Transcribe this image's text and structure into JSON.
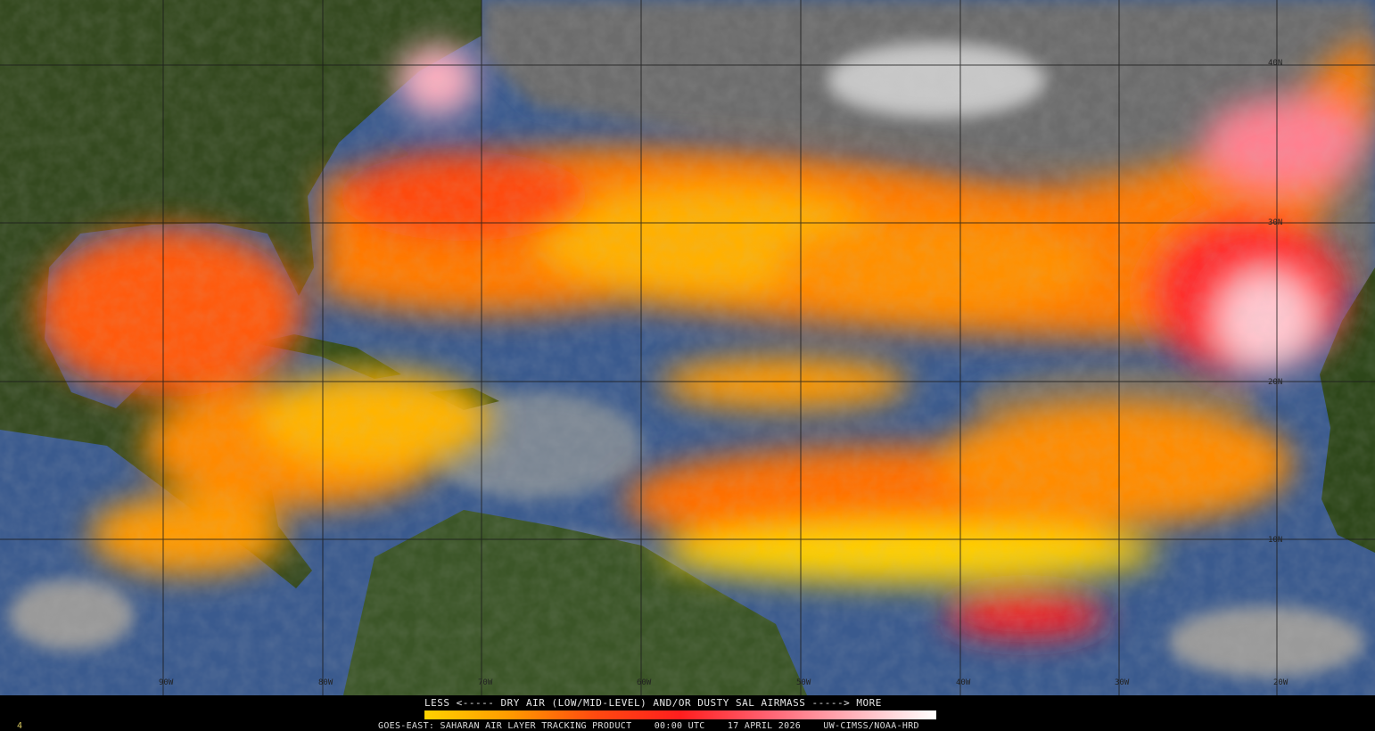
{
  "legend": {
    "title": "LESS <----- DRY AIR (LOW/MID-LEVEL) AND/OR DUSTY SAL AIRMASS -----> MORE",
    "scale_colors": [
      "#ffd200",
      "#ff9a00",
      "#ff4a10",
      "#ff1e1e",
      "#ff6070",
      "#ffb0b8",
      "#ffffff"
    ]
  },
  "caption": {
    "product": "GOES-EAST: SAHARAN AIR LAYER TRACKING PRODUCT",
    "time": "00:00 UTC",
    "date": "17 APRIL 2026",
    "source": "UW-CIMSS/NOAA-HRD"
  },
  "frame_number": "4",
  "grid": {
    "longitude_labels": [
      "90W",
      "80W",
      "70W",
      "60W",
      "50W",
      "40W",
      "30W",
      "20W"
    ],
    "latitude_labels": [
      "40N",
      "30N",
      "20N",
      "10N"
    ]
  },
  "colors": {
    "ocean": "#3a5a8e",
    "land": "#34491f",
    "cloud": "#8a8a8a",
    "dry_air_low": "#ffd200",
    "dry_air_mid": "#ff6a00",
    "dry_air_high": "#ff1e1e",
    "dry_air_max": "#ffc0c8"
  }
}
